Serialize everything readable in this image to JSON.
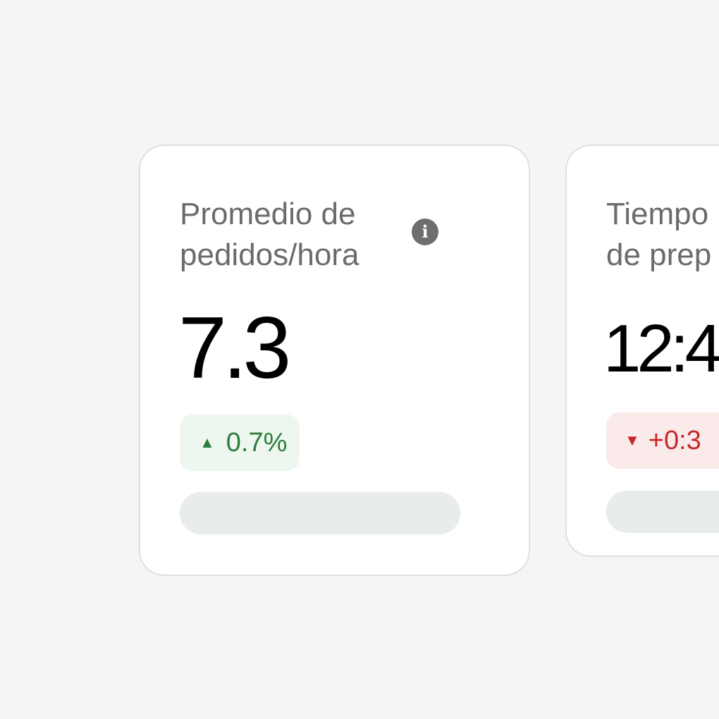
{
  "cards": [
    {
      "title_lines": [
        "Promedio de",
        "pedidos/hora"
      ],
      "info_icon": "i",
      "value": "7.3",
      "change": {
        "direction": "up",
        "arrow": "▲",
        "text": "0.7%",
        "color": "#2e7d3c"
      }
    },
    {
      "title_lines": [
        "Tiempo",
        "de prep"
      ],
      "value": "12:4",
      "change": {
        "direction": "down",
        "arrow": "▼",
        "text": "+0:3",
        "color": "#c62828"
      }
    }
  ]
}
